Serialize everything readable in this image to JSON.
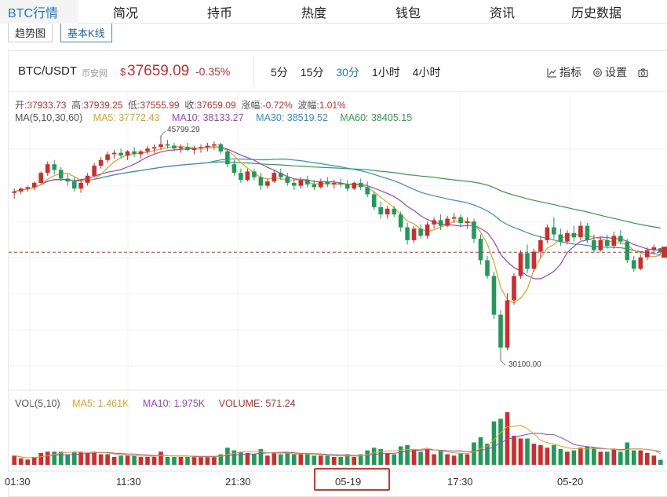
{
  "nav": {
    "tabs": [
      "BTC行情",
      "简况",
      "持币",
      "热度",
      "钱包",
      "资讯",
      "历史数据"
    ],
    "active_index": 0
  },
  "subtabs": {
    "items": [
      "趋势图",
      "基本K线"
    ],
    "active_index": 1
  },
  "ticker": {
    "pair": "BTC/USDT",
    "exchange": "币安网",
    "currency_symbol": "$",
    "price": "37659.09",
    "change": "-0.35%",
    "up_color": "#d12b2b",
    "down_color": "#1e9b59"
  },
  "intervals": {
    "items": [
      "5分",
      "15分",
      "30分",
      "1小时",
      "4小时"
    ],
    "active_index": 2
  },
  "tools": {
    "indicator": "指标",
    "settings": "设置"
  },
  "ohlc": {
    "open_label": "开:",
    "open": "37933.73",
    "high_label": "高:",
    "high": "37939.25",
    "low_label": "低:",
    "low": "37555.99",
    "close_label": "收:",
    "close": "37659.09",
    "amp_label": "涨幅:",
    "amp": "-0.72%",
    "wave_label": "波幅:",
    "wave": "1.01%"
  },
  "ma": {
    "label": "MA(5,10,30,60)",
    "ma5": "MA5: 37772.43",
    "ma10": "MA10: 38133.27",
    "ma30": "MA30: 38519.52",
    "ma60": "MA60: 38405.15",
    "colors": {
      "ma5": "#e0a418",
      "ma10": "#a33fc8",
      "ma30": "#2d8fd6",
      "ma60": "#2aa14a"
    }
  },
  "vol": {
    "label": "VOL(5,10)",
    "ma5": "MA5: 1.461K",
    "ma10": "MA10: 1.975K",
    "volume": "VOLUME: 571.24"
  },
  "chart_data": {
    "type": "candlestick",
    "price_annotations": {
      "high": "45799.29",
      "low": "30100.00"
    },
    "x_ticks": [
      "01:30",
      "11:30",
      "21:30",
      "05-19",
      "17:30",
      "05-20"
    ],
    "highlighted_tick": "05-19",
    "candles": [
      [
        41800,
        42100,
        41400,
        41900
      ],
      [
        41900,
        42200,
        41700,
        42100
      ],
      [
        42100,
        42300,
        41900,
        42200
      ],
      [
        42200,
        42600,
        42000,
        42500
      ],
      [
        42500,
        43300,
        42400,
        43200
      ],
      [
        43200,
        44000,
        43000,
        43800
      ],
      [
        43800,
        44100,
        43100,
        43400
      ],
      [
        43400,
        43600,
        42600,
        42800
      ],
      [
        42800,
        43100,
        42300,
        42600
      ],
      [
        42600,
        42900,
        41900,
        42100
      ],
      [
        42100,
        42800,
        41800,
        42500
      ],
      [
        42500,
        43200,
        42300,
        43000
      ],
      [
        43000,
        43900,
        42900,
        43700
      ],
      [
        43700,
        44300,
        43500,
        44100
      ],
      [
        44100,
        44700,
        43900,
        44500
      ],
      [
        44500,
        44800,
        44200,
        44600
      ],
      [
        44600,
        44900,
        44200,
        44400
      ],
      [
        44400,
        44800,
        44100,
        44700
      ],
      [
        44700,
        45000,
        44300,
        44500
      ],
      [
        44500,
        44800,
        44200,
        44700
      ],
      [
        44700,
        45100,
        44500,
        44900
      ],
      [
        44900,
        45200,
        44600,
        45000
      ],
      [
        45000,
        45800,
        44800,
        45200
      ],
      [
        45200,
        45500,
        44900,
        45100
      ],
      [
        45100,
        45300,
        44700,
        44900
      ],
      [
        44900,
        45200,
        44600,
        45000
      ],
      [
        45000,
        45300,
        44700,
        44800
      ],
      [
        44800,
        45100,
        44500,
        44900
      ],
      [
        44900,
        45200,
        44600,
        45000
      ],
      [
        45000,
        45300,
        44700,
        45100
      ],
      [
        45100,
        45400,
        44800,
        45200
      ],
      [
        45200,
        45300,
        44500,
        44700
      ],
      [
        44700,
        44900,
        43600,
        43800
      ],
      [
        43800,
        44100,
        43000,
        43200
      ],
      [
        43200,
        43500,
        42500,
        42700
      ],
      [
        42700,
        43500,
        42600,
        43300
      ],
      [
        43300,
        43500,
        42700,
        42900
      ],
      [
        42900,
        43200,
        42000,
        42300
      ],
      [
        42300,
        42800,
        42100,
        42600
      ],
      [
        42600,
        43400,
        42500,
        43200
      ],
      [
        43200,
        43500,
        42700,
        42900
      ],
      [
        42900,
        43200,
        42300,
        42500
      ],
      [
        42500,
        42800,
        42000,
        42300
      ],
      [
        42300,
        42900,
        42100,
        42700
      ],
      [
        42700,
        43000,
        42200,
        42400
      ],
      [
        42400,
        42700,
        42000,
        42200
      ],
      [
        42200,
        42800,
        42100,
        42600
      ],
      [
        42600,
        42900,
        42200,
        42400
      ],
      [
        42400,
        42700,
        42100,
        42500
      ],
      [
        42500,
        42800,
        42200,
        42400
      ],
      [
        42400,
        42700,
        41900,
        42100
      ],
      [
        42100,
        42600,
        42000,
        42500
      ],
      [
        42500,
        42800,
        42000,
        42200
      ],
      [
        42200,
        42600,
        41500,
        41700
      ],
      [
        41700,
        41900,
        40600,
        40800
      ],
      [
        40800,
        41200,
        40000,
        40300
      ],
      [
        40300,
        40900,
        40000,
        40700
      ],
      [
        40700,
        40900,
        40100,
        40300
      ],
      [
        40300,
        40500,
        39100,
        39400
      ],
      [
        39400,
        39700,
        38200,
        38500
      ],
      [
        38500,
        39500,
        38300,
        39300
      ],
      [
        39300,
        39600,
        38600,
        38800
      ],
      [
        38800,
        39800,
        38600,
        39600
      ],
      [
        39600,
        40100,
        39300,
        39900
      ],
      [
        39900,
        40300,
        39200,
        39500
      ],
      [
        39500,
        40200,
        39400,
        40000
      ],
      [
        40000,
        40400,
        39700,
        40100
      ],
      [
        40100,
        40300,
        39400,
        39700
      ],
      [
        39700,
        40100,
        39300,
        39800
      ],
      [
        39800,
        40000,
        38300,
        38600
      ],
      [
        38600,
        38900,
        36800,
        37100
      ],
      [
        37100,
        37400,
        35800,
        36000
      ],
      [
        36000,
        36300,
        33000,
        33300
      ],
      [
        33300,
        33600,
        30100,
        31000
      ],
      [
        31000,
        34800,
        30800,
        34300
      ],
      [
        34300,
        36200,
        34000,
        36000
      ],
      [
        36000,
        37800,
        35800,
        37600
      ],
      [
        37600,
        38200,
        36200,
        36500
      ],
      [
        36500,
        37900,
        36300,
        37700
      ],
      [
        37700,
        38800,
        37300,
        38500
      ],
      [
        38500,
        39600,
        38300,
        39400
      ],
      [
        39400,
        40100,
        38600,
        38900
      ],
      [
        38900,
        39300,
        38100,
        38400
      ],
      [
        38400,
        39200,
        38200,
        39000
      ],
      [
        39000,
        39500,
        38400,
        38700
      ],
      [
        38700,
        39800,
        38500,
        39500
      ],
      [
        39500,
        39700,
        38300,
        38500
      ],
      [
        38500,
        38900,
        37600,
        37800
      ],
      [
        37800,
        38700,
        37700,
        38500
      ],
      [
        38500,
        38900,
        37900,
        38100
      ],
      [
        38100,
        39100,
        37900,
        38800
      ],
      [
        38800,
        39200,
        38200,
        38400
      ],
      [
        38400,
        38600,
        36900,
        37100
      ],
      [
        37100,
        37400,
        36300,
        36500
      ],
      [
        36500,
        37500,
        36400,
        37300
      ],
      [
        37300,
        38000,
        37100,
        37800
      ],
      [
        37800,
        38200,
        37500,
        38000
      ],
      [
        37933.73,
        37939.25,
        37555.99,
        37659.09
      ]
    ]
  }
}
